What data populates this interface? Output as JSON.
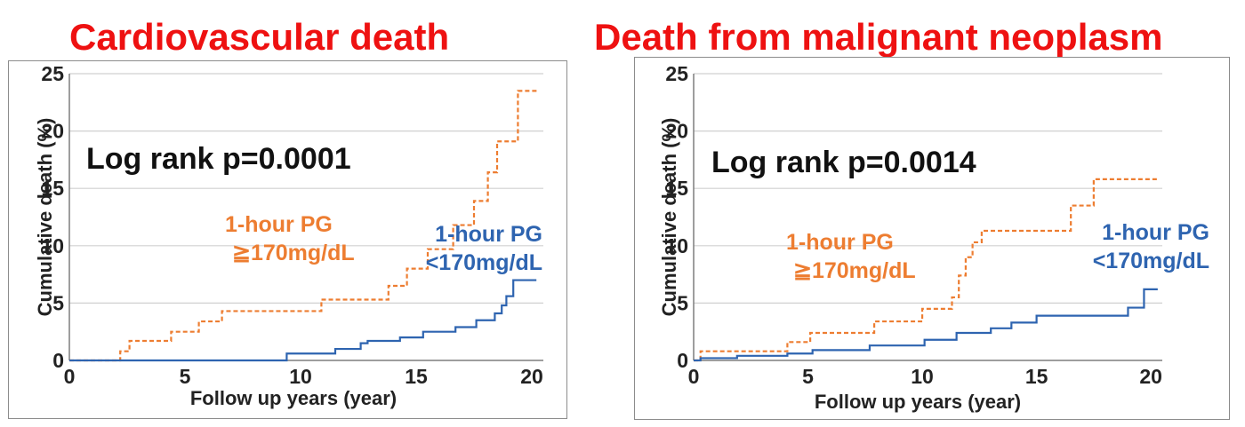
{
  "colors": {
    "title": "#ee1111",
    "high_pg": "#ed7d31",
    "low_pg": "#2e64b0",
    "grid": "#d0d0d0",
    "axis": "#7f7f7f"
  },
  "chart_data": [
    {
      "type": "line",
      "title": "Cardiovascular death",
      "xlabel": "Follow up years (year)",
      "ylabel": "Cumulative death (%)",
      "xlim": [
        0,
        20.5
      ],
      "ylim": [
        0,
        25
      ],
      "xticks": [
        "0",
        "5",
        "10",
        "15",
        "20"
      ],
      "yticks": [
        "0",
        "5",
        "10",
        "15",
        "20",
        "25"
      ],
      "grid": true,
      "annotation": "Log rank p=0.0001",
      "series": [
        {
          "name": "1-hour PG ≧170mg/dL",
          "label_lines": [
            "1-hour PG",
            "≧170mg/dL"
          ],
          "style": "dashed",
          "color": "#ed7d31",
          "x": [
            2.2,
            2.6,
            4.4,
            5.6,
            6.6,
            10.9,
            13.8,
            14.6,
            15.5,
            16.6,
            17.5,
            18.1,
            18.5,
            19.4,
            20.3
          ],
          "y": [
            0.8,
            1.7,
            2.5,
            3.4,
            4.3,
            5.3,
            6.5,
            8.0,
            9.7,
            11.8,
            13.9,
            16.4,
            19.1,
            23.5,
            23.5
          ]
        },
        {
          "name": "1-hour PG <170mg/dL",
          "label_lines": [
            "1-hour PG",
            "<170mg/dL"
          ],
          "style": "solid",
          "color": "#2e64b0",
          "x": [
            9.4,
            11.5,
            12.6,
            12.9,
            14.3,
            15.3,
            16.7,
            17.6,
            18.4,
            18.7,
            18.9,
            19.2,
            20.2
          ],
          "y": [
            0.6,
            1.0,
            1.5,
            1.7,
            2.0,
            2.5,
            2.9,
            3.5,
            4.1,
            4.8,
            5.6,
            7.0,
            7.0
          ]
        }
      ]
    },
    {
      "type": "line",
      "title": "Death from malignant neoplasm",
      "xlabel": "Follow up years (year)",
      "ylabel": "Cumulative death (%)",
      "xlim": [
        0,
        20.5
      ],
      "ylim": [
        0,
        25
      ],
      "xticks": [
        "0",
        "5",
        "10",
        "15",
        "20"
      ],
      "yticks": [
        "0",
        "5",
        "10",
        "15",
        "20",
        "25"
      ],
      "grid": true,
      "annotation": "Log rank p=0.0014",
      "series": [
        {
          "name": "1-hour PG ≧170mg/dL",
          "label_lines": [
            "1-hour PG",
            "≧170mg/dL"
          ],
          "style": "dashed",
          "color": "#ed7d31",
          "x": [
            0.3,
            4.1,
            5.1,
            7.9,
            10.0,
            11.3,
            11.6,
            11.9,
            12.2,
            12.6,
            16.5,
            17.5,
            20.3
          ],
          "y": [
            0.8,
            1.6,
            2.4,
            3.4,
            4.5,
            5.5,
            7.4,
            9.0,
            10.3,
            11.3,
            13.5,
            15.8,
            15.8
          ]
        },
        {
          "name": "1-hour PG <170mg/dL",
          "label_lines": [
            "1-hour PG",
            "<170mg/dL"
          ],
          "style": "solid",
          "color": "#2e64b0",
          "x": [
            0.3,
            1.9,
            4.1,
            5.2,
            7.7,
            10.1,
            11.5,
            13.0,
            13.9,
            15.0,
            19.0,
            19.7,
            20.3
          ],
          "y": [
            0.2,
            0.4,
            0.6,
            0.9,
            1.3,
            1.8,
            2.4,
            2.8,
            3.3,
            3.9,
            4.6,
            6.2,
            6.2
          ]
        }
      ]
    }
  ]
}
